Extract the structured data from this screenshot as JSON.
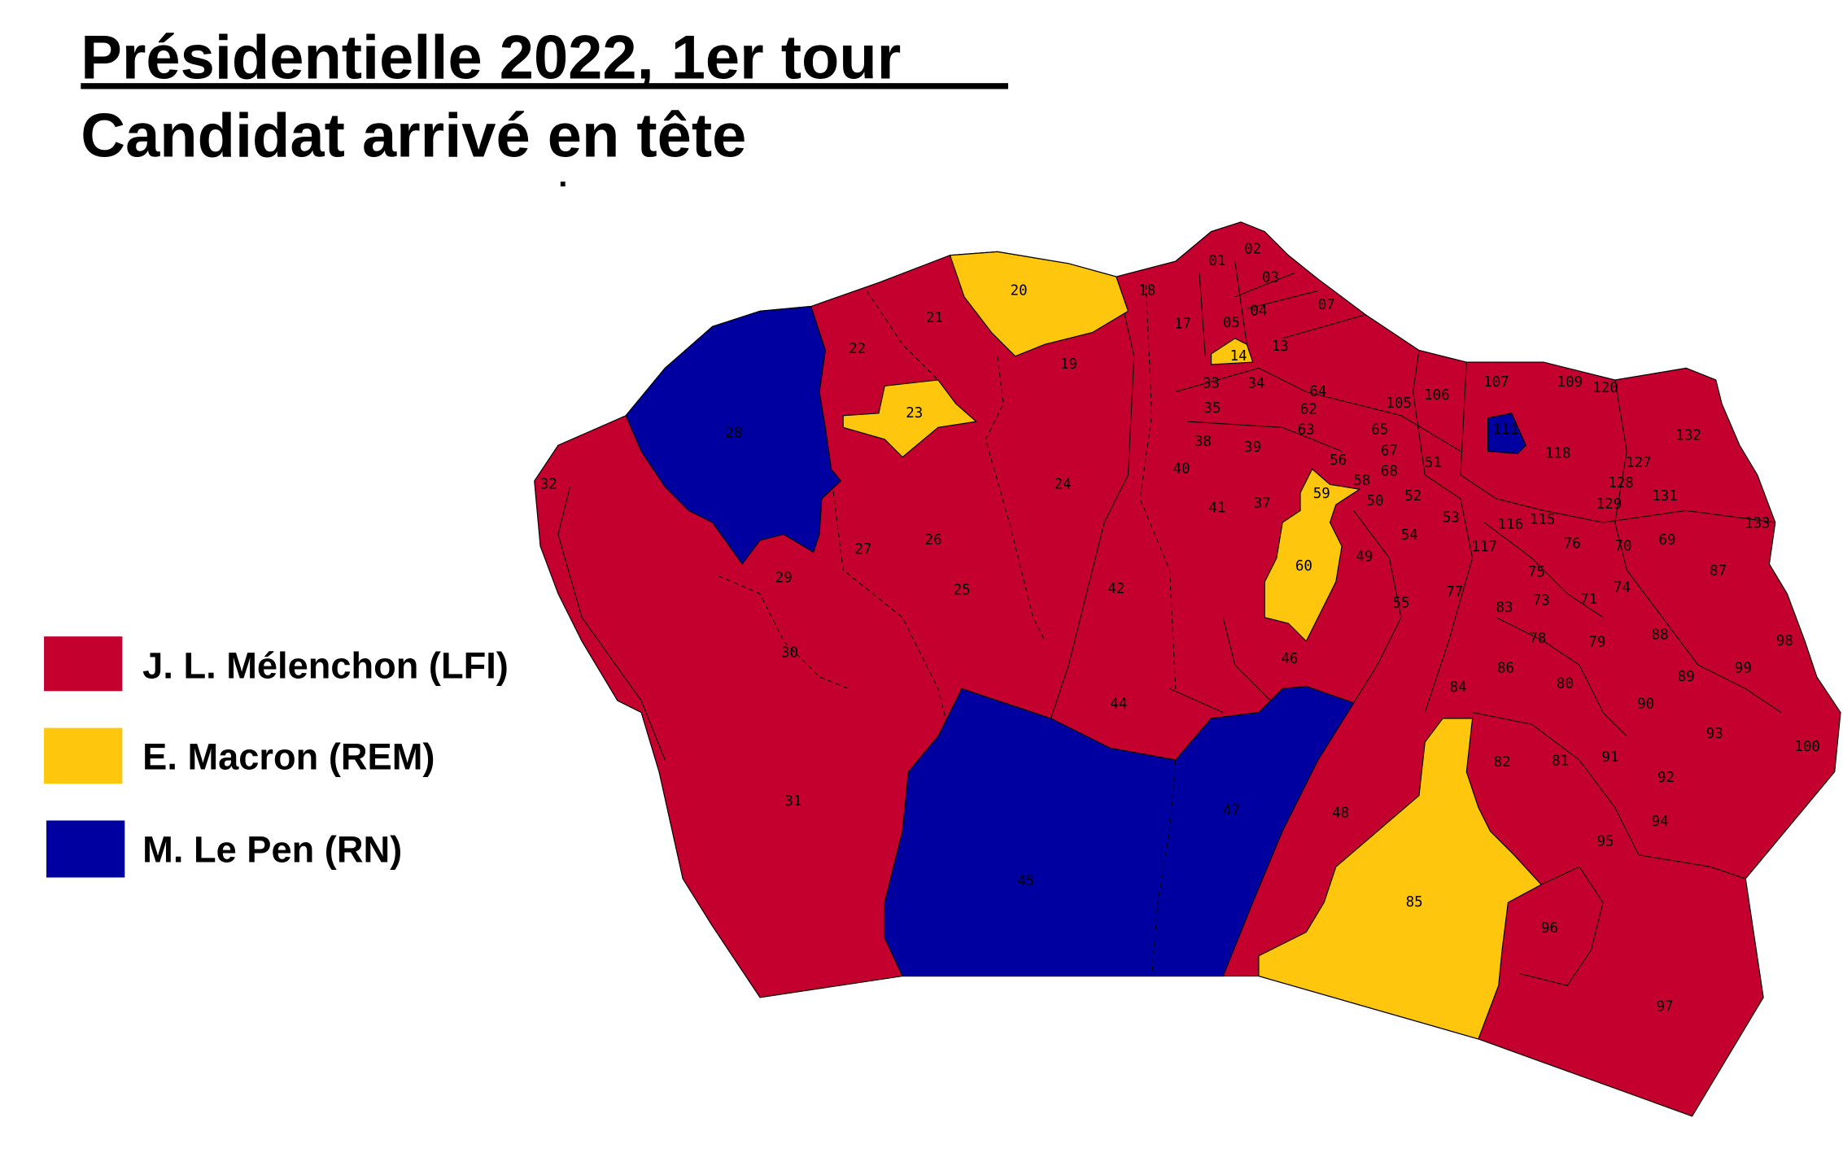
{
  "title": "Présidentielle 2022, 1er tour",
  "subtitle": "Candidat arrivé en tête",
  "colors": {
    "melenchon": "#C4002F",
    "macron": "#FEC60C",
    "lepen": "#0000A0",
    "outline": "#000000"
  },
  "legend": [
    {
      "label": "J. L. Mélenchon (LFI)",
      "color": "#C4002F"
    },
    {
      "label": "E. Macron (REM)",
      "color": "#FEC60C"
    },
    {
      "label": "M. Le Pen (RN)",
      "color": "#0000A0"
    }
  ],
  "precincts": {
    "melenchon": [
      "01",
      "02",
      "03",
      "04",
      "05",
      "07",
      "13",
      "17",
      "18",
      "19",
      "21",
      "22",
      "24",
      "25",
      "26",
      "27",
      "29",
      "30",
      "31",
      "32",
      "33",
      "34",
      "35",
      "37",
      "38",
      "39",
      "40",
      "41",
      "42",
      "44",
      "46",
      "48",
      "49",
      "50",
      "51",
      "52",
      "53",
      "54",
      "55",
      "56",
      "58",
      "62",
      "63",
      "64",
      "65",
      "67",
      "68",
      "69",
      "70",
      "71",
      "73",
      "74",
      "75",
      "76",
      "77",
      "78",
      "79",
      "80",
      "81",
      "82",
      "83",
      "84",
      "86",
      "87",
      "88",
      "89",
      "90",
      "91",
      "92",
      "93",
      "94",
      "95",
      "96",
      "97",
      "98",
      "99",
      "100",
      "105",
      "106",
      "107",
      "109",
      "115",
      "116",
      "117",
      "118",
      "120",
      "127",
      "128",
      "129",
      "131",
      "132",
      "133"
    ],
    "macron": [
      "14",
      "20",
      "23",
      "59",
      "60",
      "85"
    ],
    "lepen": [
      "28",
      "45",
      "47",
      "111"
    ]
  }
}
